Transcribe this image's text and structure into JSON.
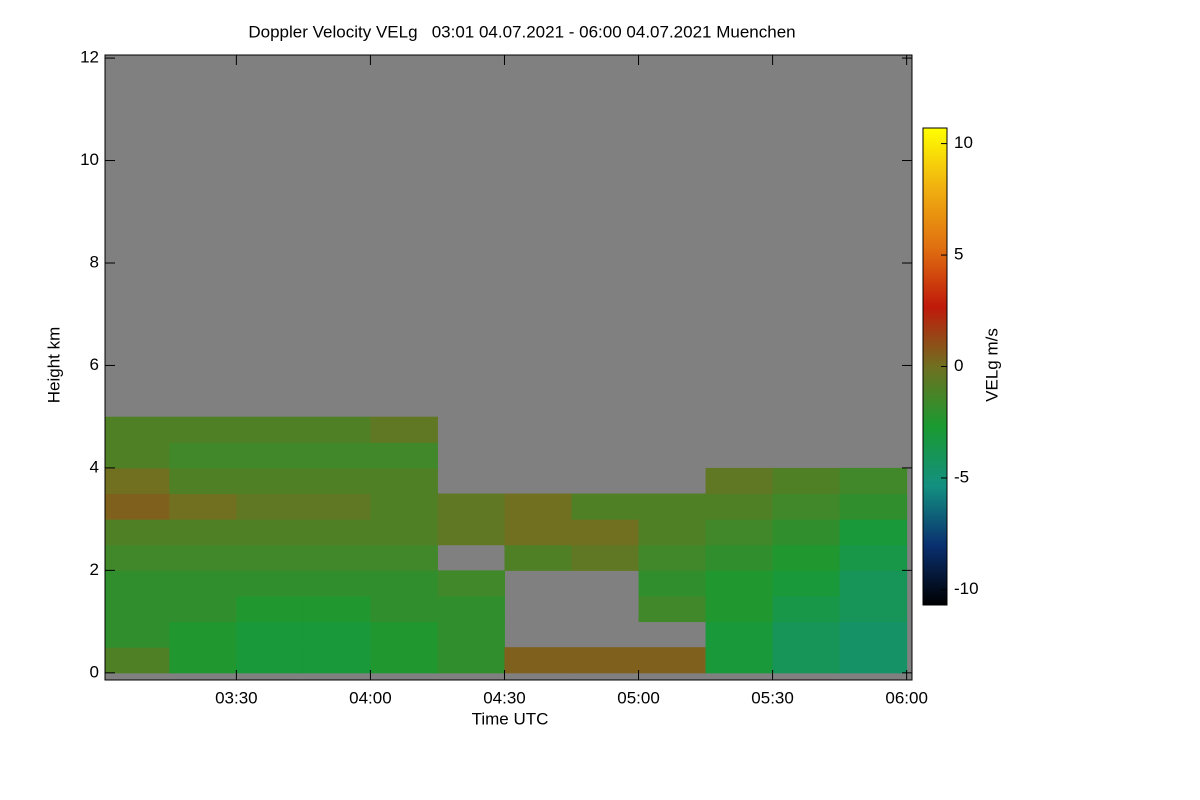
{
  "chart_data": {
    "type": "heatmap",
    "title": "Doppler Velocity VELg   03:01 04.07.2021 - 06:00 04.07.2021 Muenchen",
    "xlabel": "Time UTC",
    "ylabel": "Height km",
    "xlim": [
      3.01,
      6.02
    ],
    "ylim": [
      -0.14,
      12.06
    ],
    "xticks": [
      {
        "value": 3.5,
        "label": "03:30"
      },
      {
        "value": 4.0,
        "label": "04:00"
      },
      {
        "value": 4.5,
        "label": "04:30"
      },
      {
        "value": 5.0,
        "label": "05:00"
      },
      {
        "value": 5.5,
        "label": "05:30"
      },
      {
        "value": 6.0,
        "label": "06:00"
      }
    ],
    "yticks": [
      0,
      2,
      4,
      6,
      8,
      10,
      12
    ],
    "background": "#808080",
    "x_edges": [
      3.0,
      3.25,
      3.5,
      3.75,
      4.0,
      4.25,
      4.5,
      4.75,
      5.0,
      5.25,
      5.5,
      5.75,
      6.0
    ],
    "y_edges": [
      0,
      0.5,
      1,
      1.5,
      2,
      2.5,
      3,
      3.5,
      4,
      4.5,
      5
    ],
    "z": [
      [
        -1,
        -2.5,
        -3,
        -3,
        -2.5,
        -2,
        0.5,
        0.5,
        0.5,
        -3,
        -4,
        -4.5
      ],
      [
        -2,
        -2.5,
        -3,
        -3,
        -2.5,
        -2,
        null,
        null,
        null,
        -3,
        -4,
        -4.5
      ],
      [
        -2,
        -2,
        -2.5,
        -2.5,
        -2,
        -2,
        null,
        null,
        -1.5,
        -2.5,
        -3.5,
        -4
      ],
      [
        -2,
        -2,
        -2,
        -2,
        -2,
        -1.5,
        null,
        null,
        -2,
        -2.5,
        -3,
        -4
      ],
      [
        -1.5,
        -1.5,
        -1.5,
        -1.5,
        -1.5,
        null,
        -1,
        -0.5,
        -1.5,
        -2,
        -2.5,
        -3.5
      ],
      [
        -1,
        -1,
        -1,
        -1,
        -1,
        -0.5,
        0,
        0,
        -1,
        -1.5,
        -2,
        -3
      ],
      [
        0.5,
        0,
        -0.5,
        -0.5,
        -1,
        -0.5,
        0,
        -1,
        -1,
        -1,
        -1.5,
        -2
      ],
      [
        0,
        -1,
        -1,
        -1,
        -1,
        null,
        null,
        null,
        null,
        -0.5,
        -1,
        -1.5
      ],
      [
        -1,
        -1.5,
        -1.5,
        -1.5,
        -1.5,
        null,
        null,
        null,
        null,
        null,
        null,
        null
      ],
      [
        -1,
        -1,
        -1,
        -1,
        -0.5,
        null,
        null,
        null,
        null,
        null,
        null,
        null
      ]
    ],
    "colorbar": {
      "label": "VELg m/s",
      "lim": [
        -10.7,
        10.7
      ],
      "ticks": [
        -10,
        -5,
        0,
        5,
        10
      ],
      "colors": [
        "#000000",
        "#0a3070",
        "#139080",
        "#1a9a30",
        "#707020",
        "#c01a0a",
        "#e07010",
        "#f0b010",
        "#ffff00"
      ]
    }
  }
}
